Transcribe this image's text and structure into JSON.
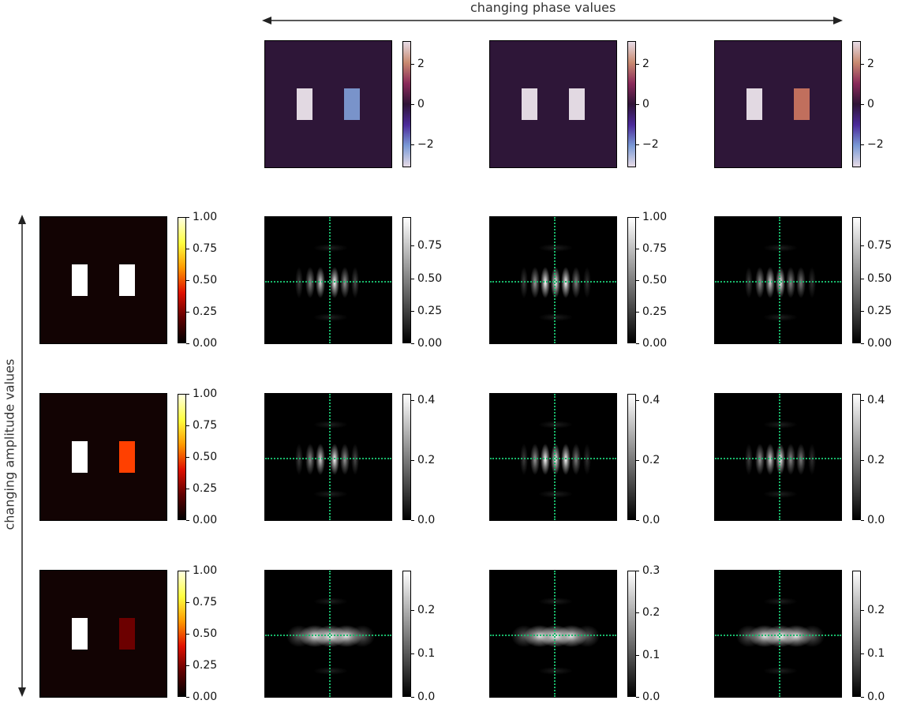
{
  "labels": {
    "top_axis": "changing phase values",
    "left_axis": "changing amplitude values"
  },
  "colormaps": {
    "phase": "twilight",
    "amplitude": "hot",
    "diffraction": "gray"
  },
  "colors": {
    "crosshair": "#18b86a",
    "phase_background": "#2e1638",
    "amplitude_background": "#120303"
  },
  "phase_row": [
    {
      "left_slit_phase": 3.14,
      "right_slit_phase": -2.0,
      "colorbar_ticks": [
        "2",
        "0",
        "−2"
      ],
      "colorbar_range": [
        -3.14,
        3.14
      ]
    },
    {
      "left_slit_phase": 3.14,
      "right_slit_phase": 3.14,
      "colorbar_ticks": [
        "2",
        "0",
        "−2"
      ],
      "colorbar_range": [
        -3.14,
        3.14
      ]
    },
    {
      "left_slit_phase": 3.14,
      "right_slit_phase": 2.0,
      "colorbar_ticks": [
        "2",
        "0",
        "−2"
      ],
      "colorbar_range": [
        -3.14,
        3.14
      ]
    }
  ],
  "amplitude_rows": [
    {
      "left_slit_amplitude": 1.0,
      "right_slit_amplitude": 1.0,
      "amp_colorbar_ticks": [
        "1.00",
        "0.75",
        "0.50",
        "0.25",
        "0.00"
      ],
      "amp_colorbar_range": [
        0,
        1
      ],
      "diffraction": [
        {
          "ticks": [
            "0.75",
            "0.50",
            "0.25",
            "0.00"
          ],
          "range": [
            0,
            0.97
          ]
        },
        {
          "ticks": [
            "1.00",
            "0.75",
            "0.50",
            "0.25",
            "0.00"
          ],
          "range": [
            0,
            1.0
          ]
        },
        {
          "ticks": [
            "0.75",
            "0.50",
            "0.25",
            "0.00"
          ],
          "range": [
            0,
            0.97
          ]
        }
      ]
    },
    {
      "left_slit_amplitude": 1.0,
      "right_slit_amplitude": 0.5,
      "amp_colorbar_ticks": [
        "1.00",
        "0.75",
        "0.50",
        "0.25",
        "0.00"
      ],
      "amp_colorbar_range": [
        0,
        1
      ],
      "diffraction": [
        {
          "ticks": [
            "0.4",
            "0.2",
            "0.0"
          ],
          "range": [
            0,
            0.42
          ]
        },
        {
          "ticks": [
            "0.4",
            "0.2",
            "0.0"
          ],
          "range": [
            0,
            0.42
          ]
        },
        {
          "ticks": [
            "0.4",
            "0.2",
            "0.0"
          ],
          "range": [
            0,
            0.42
          ]
        }
      ]
    },
    {
      "left_slit_amplitude": 1.0,
      "right_slit_amplitude": 0.15,
      "amp_colorbar_ticks": [
        "1.00",
        "0.75",
        "0.50",
        "0.25",
        "0.00"
      ],
      "amp_colorbar_range": [
        0,
        1
      ],
      "diffraction": [
        {
          "ticks": [
            "0.2",
            "0.1",
            "0.0"
          ],
          "range": [
            0,
            0.29
          ]
        },
        {
          "ticks": [
            "0.3",
            "0.2",
            "0.1",
            "0.0"
          ],
          "range": [
            0,
            0.3
          ]
        },
        {
          "ticks": [
            "0.2",
            "0.1",
            "0.0"
          ],
          "range": [
            0,
            0.29
          ]
        }
      ]
    }
  ]
}
